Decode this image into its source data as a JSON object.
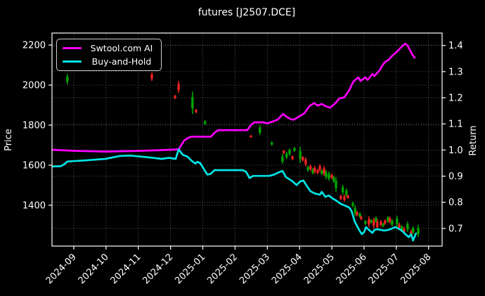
{
  "chart_data": {
    "type": "line",
    "overlay": "candlestick",
    "title": "futures [J2507.DCE]",
    "ylabel_left": "Price",
    "ylabel_right": "Return",
    "background": "#000000",
    "grid": true,
    "grid_color": "#7a7a7a",
    "legend_position": "upper-left",
    "x_tick_labels": [
      "2024-09",
      "2024-10",
      "2024-11",
      "2024-12",
      "2025-01",
      "2025-02",
      "2025-03",
      "2025-04",
      "2025-05",
      "2025-06",
      "2025-07",
      "2025-08"
    ],
    "left_ticks": [
      2200,
      2000,
      1800,
      1600,
      1400
    ],
    "right_ticks": [
      1.4,
      1.3,
      1.2,
      1.1,
      1.0,
      0.9,
      0.8,
      0.7
    ],
    "x_range_months": [
      -0.675,
      11.42
    ],
    "price_range": [
      1196,
      2260
    ],
    "return_range": [
      0.6325,
      1.4475
    ],
    "series": [
      {
        "name": "Swtool.com AI",
        "color": "#ff00ff",
        "axis": "return",
        "points": [
          [
            -0.68,
            1.001
          ],
          [
            0.0,
            0.997
          ],
          [
            0.98,
            0.994
          ],
          [
            2.07,
            0.997
          ],
          [
            2.8,
            1.0
          ],
          [
            3.16,
            1.002
          ],
          [
            3.25,
            1.003
          ],
          [
            3.42,
            1.036
          ],
          [
            3.55,
            1.047
          ],
          [
            3.66,
            1.051
          ],
          [
            4.25,
            1.051
          ],
          [
            4.36,
            1.065
          ],
          [
            4.47,
            1.076
          ],
          [
            5.38,
            1.076
          ],
          [
            5.51,
            1.098
          ],
          [
            5.6,
            1.106
          ],
          [
            5.88,
            1.106
          ],
          [
            5.99,
            1.102
          ],
          [
            6.1,
            1.106
          ],
          [
            6.32,
            1.116
          ],
          [
            6.49,
            1.138
          ],
          [
            6.6,
            1.127
          ],
          [
            6.73,
            1.118
          ],
          [
            6.82,
            1.116
          ],
          [
            6.97,
            1.127
          ],
          [
            7.15,
            1.141
          ],
          [
            7.3,
            1.167
          ],
          [
            7.45,
            1.18
          ],
          [
            7.56,
            1.17
          ],
          [
            7.69,
            1.176
          ],
          [
            7.84,
            1.166
          ],
          [
            7.95,
            1.162
          ],
          [
            8.1,
            1.178
          ],
          [
            8.23,
            1.197
          ],
          [
            8.39,
            1.202
          ],
          [
            8.54,
            1.229
          ],
          [
            8.67,
            1.262
          ],
          [
            8.82,
            1.278
          ],
          [
            8.89,
            1.264
          ],
          [
            9.04,
            1.278
          ],
          [
            9.11,
            1.268
          ],
          [
            9.26,
            1.291
          ],
          [
            9.32,
            1.283
          ],
          [
            9.48,
            1.305
          ],
          [
            9.54,
            1.318
          ],
          [
            9.65,
            1.337
          ],
          [
            9.76,
            1.345
          ],
          [
            9.85,
            1.358
          ],
          [
            9.98,
            1.372
          ],
          [
            10.07,
            1.383
          ],
          [
            10.13,
            1.391
          ],
          [
            10.22,
            1.401
          ],
          [
            10.28,
            1.407
          ],
          [
            10.35,
            1.399
          ],
          [
            10.41,
            1.385
          ],
          [
            10.5,
            1.364
          ],
          [
            10.57,
            1.353
          ]
        ]
      },
      {
        "name": "Buy-and-Hold",
        "color": "#00e5e5",
        "axis": "return",
        "points": [
          [
            -0.68,
            0.937
          ],
          [
            -0.4,
            0.938
          ],
          [
            -0.28,
            0.947
          ],
          [
            -0.2,
            0.956
          ],
          [
            0.33,
            0.96
          ],
          [
            0.98,
            0.966
          ],
          [
            1.42,
            0.977
          ],
          [
            1.74,
            0.979
          ],
          [
            2.07,
            0.975
          ],
          [
            2.4,
            0.971
          ],
          [
            2.72,
            0.966
          ],
          [
            2.94,
            0.97
          ],
          [
            3.16,
            0.966
          ],
          [
            3.25,
            1.002
          ],
          [
            3.38,
            0.982
          ],
          [
            3.53,
            0.974
          ],
          [
            3.64,
            0.96
          ],
          [
            3.77,
            0.948
          ],
          [
            3.83,
            0.955
          ],
          [
            3.92,
            0.95
          ],
          [
            4.03,
            0.928
          ],
          [
            4.14,
            0.906
          ],
          [
            4.25,
            0.909
          ],
          [
            4.36,
            0.923
          ],
          [
            5.23,
            0.923
          ],
          [
            5.34,
            0.917
          ],
          [
            5.45,
            0.893
          ],
          [
            5.56,
            0.901
          ],
          [
            6.06,
            0.901
          ],
          [
            6.21,
            0.906
          ],
          [
            6.36,
            0.915
          ],
          [
            6.47,
            0.92
          ],
          [
            6.58,
            0.896
          ],
          [
            6.75,
            0.883
          ],
          [
            6.91,
            0.866
          ],
          [
            7.02,
            0.88
          ],
          [
            7.12,
            0.883
          ],
          [
            7.19,
            0.869
          ],
          [
            7.34,
            0.842
          ],
          [
            7.47,
            0.834
          ],
          [
            7.63,
            0.829
          ],
          [
            7.69,
            0.84
          ],
          [
            7.8,
            0.821
          ],
          [
            7.91,
            0.826
          ],
          [
            8.02,
            0.815
          ],
          [
            8.13,
            0.807
          ],
          [
            8.28,
            0.794
          ],
          [
            8.43,
            0.786
          ],
          [
            8.54,
            0.78
          ],
          [
            8.61,
            0.767
          ],
          [
            8.71,
            0.727
          ],
          [
            8.82,
            0.7
          ],
          [
            8.93,
            0.678
          ],
          [
            9.0,
            0.686
          ],
          [
            9.06,
            0.705
          ],
          [
            9.15,
            0.694
          ],
          [
            9.26,
            0.683
          ],
          [
            9.32,
            0.694
          ],
          [
            9.41,
            0.697
          ],
          [
            9.52,
            0.694
          ],
          [
            9.63,
            0.692
          ],
          [
            9.74,
            0.694
          ],
          [
            9.85,
            0.699
          ],
          [
            9.96,
            0.705
          ],
          [
            10.07,
            0.699
          ],
          [
            10.18,
            0.691
          ],
          [
            10.28,
            0.678
          ],
          [
            10.39,
            0.667
          ],
          [
            10.46,
            0.678
          ],
          [
            10.52,
            0.654
          ],
          [
            10.61,
            0.681
          ]
        ]
      }
    ],
    "candles": {
      "up_color": "#00a400",
      "down_color": "#ee2222",
      "items": [
        [
          -0.2,
          2056,
          2004,
          "g"
        ],
        [
          2.42,
          2063,
          2021,
          "r"
        ],
        [
          3.14,
          1951,
          1930,
          "r"
        ],
        [
          3.25,
          2021,
          1961,
          "r"
        ],
        [
          3.68,
          1968,
          1856,
          "g"
        ],
        [
          3.79,
          1881,
          1860,
          "r"
        ],
        [
          4.07,
          1825,
          1800,
          "g"
        ],
        [
          5.49,
          1751,
          1737,
          "r"
        ],
        [
          5.77,
          1800,
          1751,
          "g"
        ],
        [
          6.14,
          1719,
          1698,
          "g"
        ],
        [
          6.47,
          1656,
          1607,
          "g"
        ],
        [
          6.51,
          1677,
          1656,
          "r"
        ],
        [
          6.6,
          1667,
          1631,
          "g"
        ],
        [
          6.69,
          1684,
          1646,
          "g"
        ],
        [
          6.78,
          1649,
          1625,
          "r"
        ],
        [
          6.84,
          1691,
          1667,
          "g"
        ],
        [
          7.02,
          1691,
          1611,
          "g"
        ],
        [
          7.1,
          1646,
          1618,
          "r"
        ],
        [
          7.19,
          1639,
          1593,
          "r"
        ],
        [
          7.26,
          1597,
          1568,
          "g"
        ],
        [
          7.34,
          1604,
          1572,
          "r"
        ],
        [
          7.41,
          1586,
          1554,
          "g"
        ],
        [
          7.47,
          1596,
          1558,
          "r"
        ],
        [
          7.56,
          1582,
          1554,
          "r"
        ],
        [
          7.63,
          1604,
          1568,
          "r"
        ],
        [
          7.69,
          1579,
          1551,
          "g"
        ],
        [
          7.76,
          1596,
          1547,
          "r"
        ],
        [
          7.82,
          1575,
          1530,
          "g"
        ],
        [
          7.91,
          1568,
          1523,
          "g"
        ],
        [
          8.0,
          1558,
          1530,
          "r"
        ],
        [
          8.06,
          1547,
          1512,
          "g"
        ],
        [
          8.13,
          1540,
          1467,
          "g"
        ],
        [
          8.28,
          1453,
          1425,
          "r"
        ],
        [
          8.34,
          1502,
          1453,
          "g"
        ],
        [
          8.39,
          1453,
          1418,
          "r"
        ],
        [
          8.45,
          1484,
          1442,
          "g"
        ],
        [
          8.5,
          1453,
          1432,
          "r"
        ],
        [
          8.65,
          1418,
          1390,
          "g"
        ],
        [
          8.72,
          1400,
          1347,
          "g"
        ],
        [
          8.78,
          1372,
          1344,
          "r"
        ],
        [
          8.87,
          1365,
          1337,
          "g"
        ],
        [
          8.91,
          1347,
          1326,
          "r"
        ],
        [
          9.04,
          1326,
          1302,
          "g"
        ],
        [
          9.15,
          1344,
          1291,
          "r"
        ],
        [
          9.22,
          1330,
          1309,
          "g"
        ],
        [
          9.3,
          1337,
          1284,
          "r"
        ],
        [
          9.37,
          1344,
          1312,
          "g"
        ],
        [
          9.41,
          1330,
          1277,
          "r"
        ],
        [
          9.52,
          1326,
          1295,
          "r"
        ],
        [
          9.59,
          1312,
          1291,
          "g"
        ],
        [
          9.65,
          1330,
          1302,
          "r"
        ],
        [
          9.74,
          1347,
          1312,
          "g"
        ],
        [
          9.8,
          1344,
          1309,
          "r"
        ],
        [
          9.87,
          1330,
          1295,
          "g"
        ],
        [
          10.02,
          1347,
          1291,
          "g"
        ],
        [
          10.09,
          1312,
          1277,
          "r"
        ],
        [
          10.17,
          1302,
          1267,
          "g"
        ],
        [
          10.24,
          1291,
          1256,
          "r"
        ],
        [
          10.35,
          1319,
          1267,
          "g"
        ],
        [
          10.46,
          1277,
          1242,
          "r"
        ],
        [
          10.52,
          1295,
          1256,
          "g"
        ],
        [
          10.68,
          1302,
          1242,
          "g"
        ]
      ]
    }
  }
}
